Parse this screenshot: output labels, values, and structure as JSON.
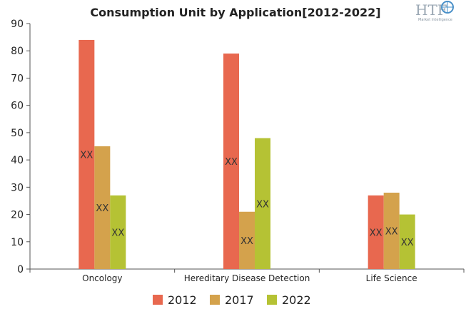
{
  "chart_data": {
    "type": "bar",
    "title": "Consumption Unit by  Application[2012-2022]",
    "categories": [
      "Oncology",
      "Hereditary Disease Detection",
      "Life Science"
    ],
    "series": [
      {
        "name": "2012",
        "color": "#e8684f",
        "values": [
          84,
          79,
          27
        ],
        "labels": [
          "XX",
          "XX",
          "XX"
        ]
      },
      {
        "name": "2017",
        "color": "#d4a24c",
        "values": [
          45,
          21,
          28
        ],
        "labels": [
          "XX",
          "XX",
          "XX"
        ]
      },
      {
        "name": "2022",
        "color": "#b5c234",
        "values": [
          27,
          48,
          20
        ],
        "labels": [
          "XX",
          "XX",
          "XX"
        ]
      }
    ],
    "ylim": [
      0,
      90
    ],
    "yticks": [
      0,
      10,
      20,
      30,
      40,
      50,
      60,
      70,
      80,
      90
    ],
    "grid": false,
    "legend_position": "bottom"
  },
  "logo": {
    "text": "HTF",
    "subtext": "Market Intelligence",
    "icon": "globe-icon"
  }
}
